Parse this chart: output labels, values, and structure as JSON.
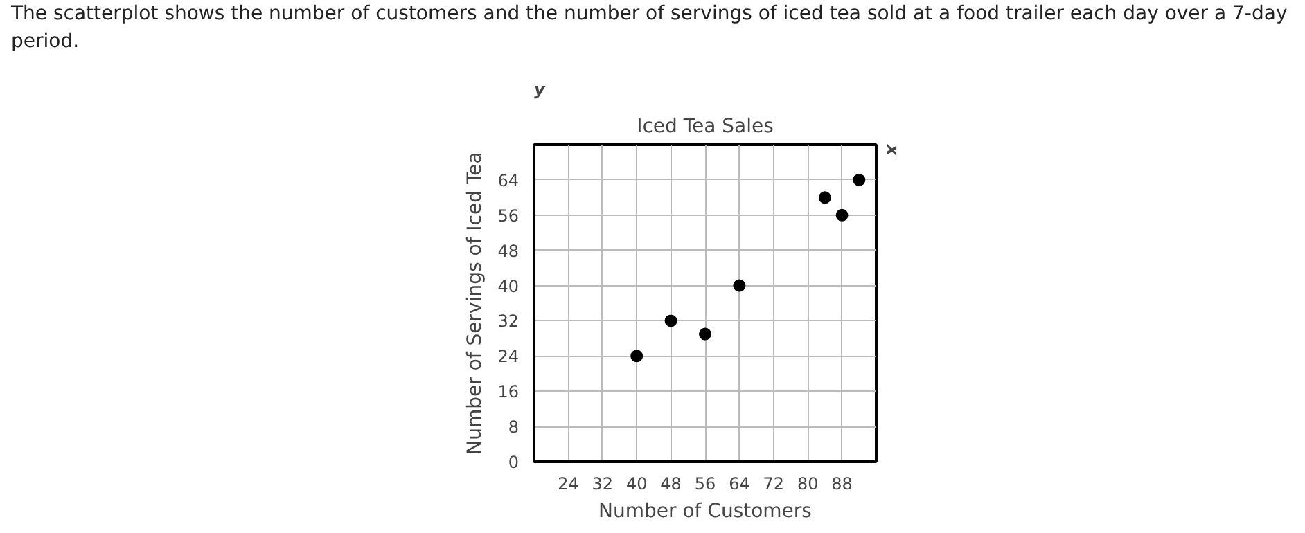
{
  "chart_data": {
    "type": "scatter",
    "subtitle": "The scatterplot shows the number of customers and the number of servings of iced tea sold at a food trailer each day over a 7-day period.",
    "title": "Iced Tea Sales",
    "xlabel": "Number of Customers",
    "ylabel": "Number of Servings of Iced Tea",
    "annotations": [
      "x",
      "y"
    ],
    "x": [
      40,
      48,
      56,
      64,
      84,
      88,
      92
    ],
    "series": [
      {
        "color": "#000000",
        "values": [
          24,
          32,
          29,
          40,
          60,
          56,
          64
        ]
      }
    ],
    "xlim": [
      16,
      96
    ],
    "xticks": [
      24,
      32,
      40,
      48,
      56,
      64,
      72,
      80,
      88,
      {
        "value": 96,
        "label": null
      }
    ],
    "ylim": [
      0,
      72
    ],
    "yticks": [
      0,
      8,
      16,
      24,
      32,
      40,
      48,
      56,
      64,
      {
        "value": 72,
        "label": null
      }
    ],
    "grid": true,
    "marker": "circle"
  }
}
